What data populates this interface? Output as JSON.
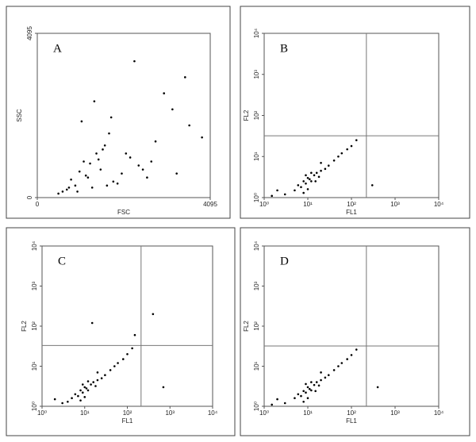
{
  "chart_data": [
    {
      "type": "scatter",
      "panel_label": "A",
      "x_label": "FSC",
      "y_label": "SSC",
      "log_scale": false,
      "xlim": [
        0,
        4095
      ],
      "ylim": [
        0,
        4095
      ],
      "xticks": [
        0,
        4095
      ],
      "yticks": [
        0,
        4095
      ],
      "color": "#000000",
      "x": [
        900,
        1200,
        1500,
        1800,
        700,
        1100,
        1400,
        2000,
        2400,
        1600,
        950,
        1300,
        1700,
        2200,
        2800,
        3200,
        3600,
        500,
        800,
        1000,
        1250,
        1550,
        1900,
        2600,
        3000,
        3500,
        3900,
        1050,
        1350,
        1650,
        2100,
        2500,
        1150,
        1450,
        750,
        1750,
        2300,
        2700,
        3300,
        600
      ],
      "values": [
        300,
        500,
        700,
        400,
        200,
        900,
        1100,
        600,
        800,
        1300,
        150,
        250,
        1600,
        1000,
        1400,
        2200,
        1800,
        100,
        450,
        650,
        850,
        1200,
        350,
        500,
        2600,
        3000,
        1500,
        1900,
        2400,
        300,
        1100,
        700,
        550,
        950,
        250,
        2000,
        3400,
        900,
        600,
        150
      ]
    },
    {
      "type": "scatter",
      "panel_label": "B",
      "x_label": "FL1",
      "y_label": "FL2",
      "log_scale": true,
      "xlim": [
        1,
        10000
      ],
      "ylim": [
        1,
        10000
      ],
      "xticks": [
        {
          "value": 1,
          "label": "10⁰"
        },
        {
          "value": 10,
          "label": "10¹"
        },
        {
          "value": 100,
          "label": "10²"
        },
        {
          "value": 1000,
          "label": "10³"
        },
        {
          "value": 10000,
          "label": "10⁴"
        }
      ],
      "yticks": [
        {
          "value": 1,
          "label": "10⁰"
        },
        {
          "value": 10,
          "label": "10¹"
        },
        {
          "value": 100,
          "label": "10²"
        },
        {
          "value": 1000,
          "label": "10³"
        },
        {
          "value": 10000,
          "label": "10⁴"
        }
      ],
      "quadrant": {
        "x": 220,
        "y": 32
      },
      "color": "#000000",
      "x": [
        5,
        6,
        7,
        8,
        9,
        10,
        11,
        12,
        14,
        16,
        18,
        20,
        25,
        30,
        40,
        50,
        60,
        80,
        100,
        130,
        8,
        10,
        12,
        15,
        3,
        2,
        1.5,
        300,
        20,
        9
      ],
      "values": [
        1.5,
        2,
        1.8,
        2.5,
        2.2,
        3,
        2.8,
        2.5,
        3.5,
        4,
        3.2,
        4.5,
        5,
        6,
        8,
        10,
        12,
        15,
        18,
        25,
        1.3,
        1.6,
        4,
        2.5,
        1.2,
        1.5,
        1.1,
        2,
        7,
        3.5
      ]
    },
    {
      "type": "scatter",
      "panel_label": "C",
      "x_label": "FL1",
      "y_label": "FL2",
      "log_scale": true,
      "xlim": [
        1,
        10000
      ],
      "ylim": [
        1,
        10000
      ],
      "xticks": [
        {
          "value": 1,
          "label": "10⁰"
        },
        {
          "value": 10,
          "label": "10¹"
        },
        {
          "value": 100,
          "label": "10²"
        },
        {
          "value": 1000,
          "label": "10³"
        },
        {
          "value": 10000,
          "label": "10⁴"
        }
      ],
      "yticks": [
        {
          "value": 1,
          "label": "10⁰"
        },
        {
          "value": 10,
          "label": "10¹"
        },
        {
          "value": 100,
          "label": "10²"
        },
        {
          "value": 1000,
          "label": "10³"
        },
        {
          "value": 10000,
          "label": "10⁴"
        }
      ],
      "quadrant": {
        "x": 210,
        "y": 33
      },
      "color": "#000000",
      "x": [
        4,
        5,
        6,
        7,
        8,
        9,
        10,
        11,
        12,
        14,
        16,
        18,
        20,
        25,
        30,
        40,
        50,
        60,
        80,
        100,
        130,
        150,
        400,
        8,
        10,
        12,
        3,
        2,
        20,
        9,
        700,
        15
      ],
      "values": [
        1.3,
        1.6,
        2,
        1.8,
        2.5,
        2.2,
        3,
        2.8,
        2.5,
        3.5,
        4,
        3.2,
        4.5,
        5,
        6,
        8,
        10,
        12,
        15,
        20,
        28,
        60,
        200,
        1.4,
        1.7,
        4.2,
        1.2,
        1.5,
        7,
        3.5,
        3,
        120
      ]
    },
    {
      "type": "scatter",
      "panel_label": "D",
      "x_label": "FL1",
      "y_label": "FL2",
      "log_scale": true,
      "xlim": [
        1,
        10000
      ],
      "ylim": [
        1,
        10000
      ],
      "xticks": [
        {
          "value": 1,
          "label": "10⁰"
        },
        {
          "value": 10,
          "label": "10¹"
        },
        {
          "value": 100,
          "label": "10²"
        },
        {
          "value": 1000,
          "label": "10³"
        },
        {
          "value": 10000,
          "label": "10⁴"
        }
      ],
      "yticks": [
        {
          "value": 1,
          "label": "10⁰"
        },
        {
          "value": 10,
          "label": "10¹"
        },
        {
          "value": 100,
          "label": "10²"
        },
        {
          "value": 1000,
          "label": "10³"
        },
        {
          "value": 10000,
          "label": "10⁴"
        }
      ],
      "quadrant": {
        "x": 220,
        "y": 32
      },
      "color": "#000000",
      "x": [
        5,
        6,
        7,
        8,
        9,
        10,
        11,
        12,
        14,
        16,
        18,
        20,
        25,
        30,
        40,
        50,
        60,
        80,
        100,
        130,
        8,
        10,
        12,
        15,
        3,
        2,
        1.5,
        400,
        20,
        9
      ],
      "values": [
        1.6,
        2,
        1.8,
        2.4,
        2.2,
        3,
        2.7,
        2.5,
        3.4,
        4,
        3.3,
        4.5,
        5.2,
        6,
        8,
        10,
        12,
        15,
        19,
        26,
        1.3,
        1.6,
        4,
        2.4,
        1.2,
        1.5,
        1.1,
        3,
        7,
        3.6
      ]
    }
  ]
}
